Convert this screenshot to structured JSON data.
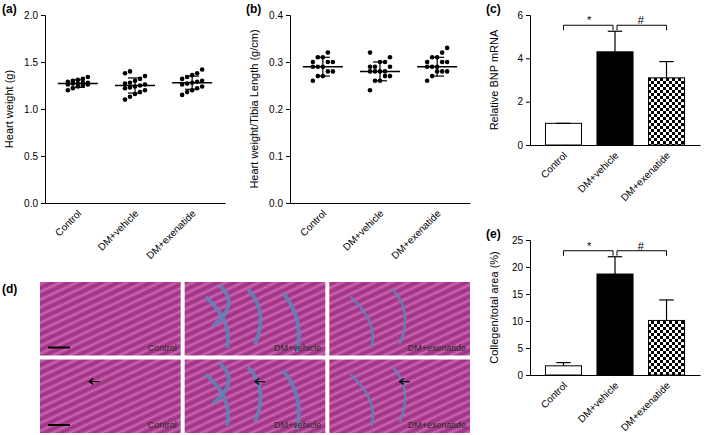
{
  "chart_data": [
    {
      "type": "scatter",
      "title": "(a)",
      "y_label": "Heart weight (g)",
      "categories": [
        "Control",
        "DM+vehicle",
        "DM+exenatide"
      ],
      "points": [
        [
          1.2,
          1.22,
          1.24,
          1.25,
          1.26,
          1.26,
          1.27,
          1.27,
          1.28,
          1.28,
          1.29,
          1.3,
          1.31,
          1.32,
          1.34
        ],
        [
          1.1,
          1.13,
          1.16,
          1.18,
          1.2,
          1.22,
          1.23,
          1.24,
          1.25,
          1.26,
          1.27,
          1.28,
          1.3,
          1.32,
          1.35,
          1.38,
          1.4
        ],
        [
          1.15,
          1.18,
          1.2,
          1.22,
          1.24,
          1.26,
          1.27,
          1.28,
          1.29,
          1.3,
          1.32,
          1.34,
          1.36,
          1.38,
          1.42
        ]
      ],
      "values": [
        1.27,
        1.25,
        1.28
      ],
      "errors": [
        0.04,
        0.08,
        0.07
      ],
      "color": "#000000",
      "ylim": [
        0,
        2
      ],
      "yticks": [
        {
          "value": 0,
          "label": "0.0"
        },
        0.5,
        {
          "value": 1,
          "label": "1.0"
        },
        1.5,
        {
          "value": 2,
          "label": "2.0"
        }
      ]
    },
    {
      "type": "scatter",
      "title": "(b)",
      "y_label": "Heart weight/Tibia Length (g/cm)",
      "categories": [
        "Control",
        "DM+vehicle",
        "DM+exenatide"
      ],
      "points": [
        [
          0.26,
          0.27,
          0.27,
          0.28,
          0.28,
          0.29,
          0.29,
          0.29,
          0.3,
          0.3,
          0.3,
          0.31,
          0.31,
          0.32
        ],
        [
          0.24,
          0.26,
          0.26,
          0.27,
          0.27,
          0.28,
          0.28,
          0.28,
          0.28,
          0.29,
          0.29,
          0.29,
          0.3,
          0.3,
          0.31,
          0.32
        ],
        [
          0.26,
          0.27,
          0.28,
          0.28,
          0.28,
          0.29,
          0.29,
          0.29,
          0.3,
          0.3,
          0.3,
          0.31,
          0.31,
          0.32,
          0.33
        ]
      ],
      "values": [
        0.29,
        0.28,
        0.29
      ],
      "errors": [
        0.02,
        0.02,
        0.02
      ],
      "color": "#000000",
      "ylim": [
        0,
        0.4
      ],
      "yticks": [
        {
          "value": 0,
          "label": "0.0"
        },
        0.1,
        0.2,
        0.3,
        0.4
      ]
    },
    {
      "type": "bar",
      "title": "(c)",
      "y_label": "Relative BNP mRNA",
      "categories": [
        "Control",
        "DM+vehicle",
        "DM+exenatide"
      ],
      "values": [
        1,
        4.3,
        3.1
      ],
      "errors": [
        0,
        0.95,
        0.75
      ],
      "colors": [
        "#ffffff",
        "#000000",
        "#000000"
      ],
      "ylim": [
        0,
        6
      ],
      "yticks": [
        0,
        2,
        4,
        6
      ],
      "annotations": [
        {
          "text": "*",
          "from": "Control",
          "to": "DM+vehicle"
        },
        {
          "text": "#",
          "from": "DM+vehicle",
          "to": "DM+exenatide"
        }
      ]
    },
    {
      "type": "image",
      "title": "(d)",
      "labels": [
        [
          "Control",
          "DM+vehicle",
          "DM+exenatide"
        ],
        [
          "Control",
          "DM+vehicle",
          "DM+exenatide"
        ]
      ]
    },
    {
      "type": "bar",
      "title": "(e)",
      "y_label": "Collegen/total area (%)",
      "categories": [
        "Control",
        "DM+vehicle",
        "DM+exenatide"
      ],
      "values": [
        1.7,
        18.7,
        10.1
      ],
      "errors": [
        0.6,
        3.2,
        3.8
      ],
      "colors": [
        "#ffffff",
        "#000000",
        "#000000"
      ],
      "ylim": [
        0,
        25
      ],
      "yticks": [
        0,
        5,
        10,
        15,
        20,
        25
      ],
      "annotations": [
        {
          "text": "*",
          "from": "Control",
          "to": "DM+vehicle"
        },
        {
          "text": "#",
          "from": "DM+vehicle",
          "to": "DM+exenatide"
        }
      ]
    }
  ]
}
